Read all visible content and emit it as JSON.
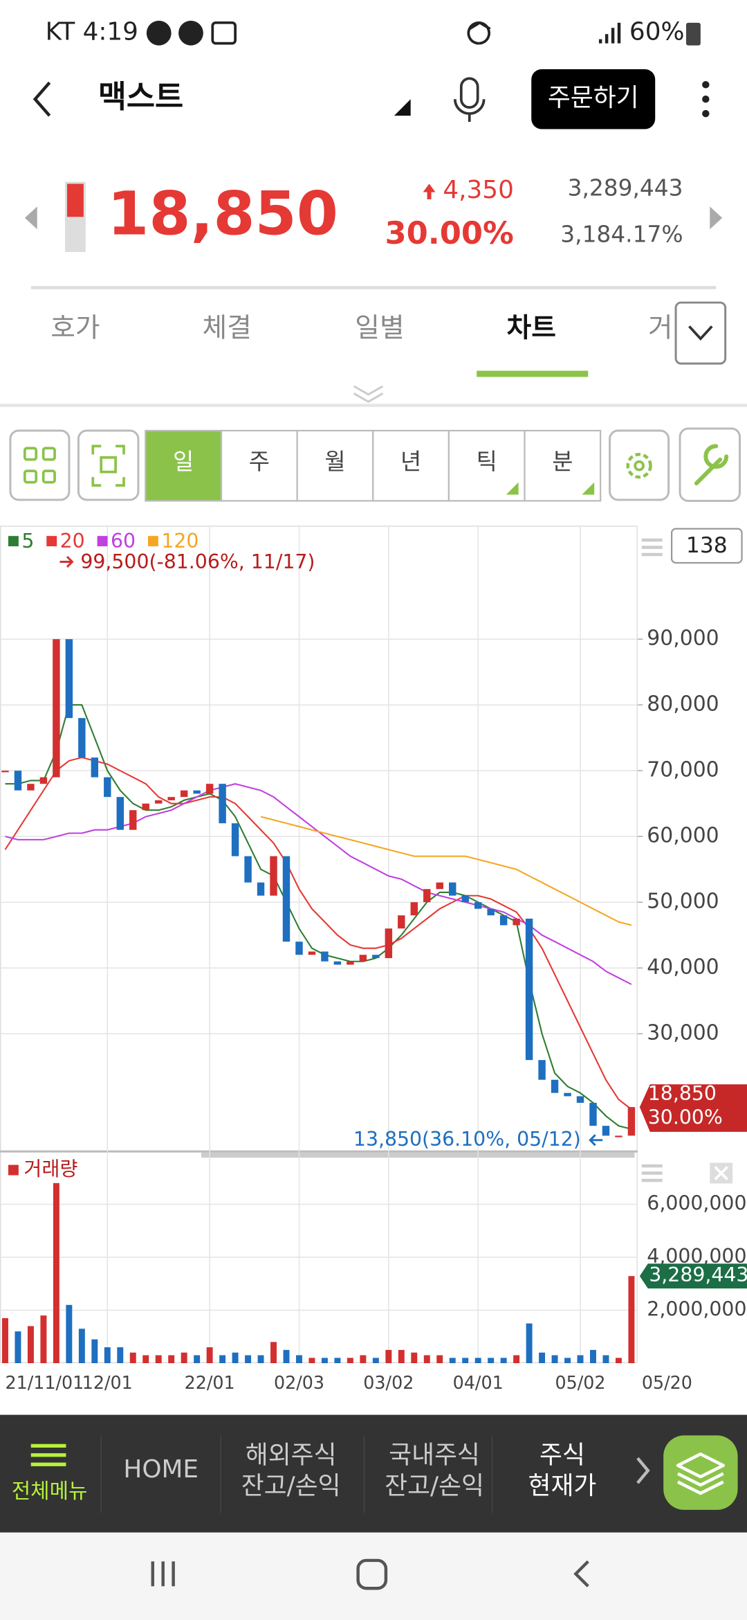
{
  "status_bar": {
    "left": "KT 4:19",
    "battery": "60%"
  },
  "header": {
    "title": "맥스트",
    "order_button": "주문하기"
  },
  "quote": {
    "price": "18,850",
    "change": "4,350",
    "change_rate": "30.00%",
    "volume": "3,289,443",
    "volume_rate": "3,184.17%"
  },
  "tabs": {
    "items": [
      "호가",
      "체결",
      "일별",
      "차트",
      "거"
    ],
    "active": 3
  },
  "toolbar": {
    "periods": [
      "일",
      "주",
      "월",
      "년",
      "틱",
      "분"
    ],
    "active": 0
  },
  "chart_data": {
    "type": "candlestick",
    "categories": [
      "21/11/01",
      null,
      null,
      null,
      null,
      null,
      null,
      null,
      "12/01",
      null,
      null,
      null,
      null,
      null,
      null,
      null,
      "22/01",
      null,
      null,
      null,
      null,
      null,
      null,
      "02/03",
      null,
      null,
      null,
      null,
      null,
      null,
      "03/02",
      null,
      null,
      null,
      null,
      null,
      null,
      "04/01",
      null,
      null,
      null,
      null,
      null,
      null,
      null,
      "05/02",
      null,
      null,
      null,
      "05/20"
    ],
    "close": [
      70000,
      67000,
      68000,
      69000,
      90000,
      78000,
      72000,
      69000,
      66000,
      61000,
      64000,
      65000,
      65500,
      66000,
      67000,
      66500,
      68000,
      62000,
      57000,
      53000,
      51000,
      57000,
      44000,
      42000,
      42500,
      41000,
      40500,
      41000,
      42000,
      41500,
      46000,
      48000,
      50000,
      52000,
      53000,
      51000,
      50000,
      49000,
      48000,
      46500,
      47500,
      26000,
      23000,
      21000,
      20500,
      19500,
      16000,
      14500,
      14500,
      18850
    ],
    "up_color": "#d32f2f",
    "down_color": "#1e6fc0",
    "series": [
      {
        "name": "5",
        "color": "#2e7d32",
        "values": [
          68000,
          68000,
          68500,
          68500,
          73000,
          80000,
          80000,
          75000,
          70000,
          67000,
          65000,
          64000,
          64000,
          64500,
          65500,
          66000,
          66500,
          65500,
          63000,
          59000,
          55000,
          54000,
          50000,
          46000,
          43000,
          42000,
          41500,
          41000,
          41000,
          41500,
          43000,
          45000,
          47500,
          50000,
          51500,
          51500,
          51000,
          50000,
          49000,
          48000,
          47000,
          38000,
          30000,
          24000,
          22000,
          21000,
          19500,
          17500,
          16000,
          15500
        ]
      },
      {
        "name": "20",
        "color": "#e53935",
        "values": [
          58000,
          61000,
          64000,
          67000,
          70000,
          71500,
          72000,
          71500,
          71000,
          70000,
          69000,
          68000,
          66000,
          65000,
          65000,
          65500,
          66000,
          66000,
          65000,
          63000,
          61000,
          59000,
          56000,
          52000,
          49000,
          47000,
          45000,
          43500,
          43000,
          43000,
          43500,
          44500,
          46000,
          47500,
          49000,
          50000,
          51000,
          51000,
          50500,
          49500,
          48500,
          46000,
          43000,
          39000,
          35000,
          31000,
          27000,
          23000,
          20000,
          18500
        ]
      },
      {
        "name": "60",
        "color": "#c040e0",
        "values": [
          60000,
          59500,
          59500,
          59500,
          60000,
          60500,
          60500,
          61000,
          61000,
          61500,
          62000,
          63000,
          63500,
          64000,
          65000,
          66000,
          67000,
          67500,
          68000,
          67500,
          67000,
          66000,
          64500,
          63000,
          61500,
          60000,
          58500,
          57000,
          56000,
          55000,
          54000,
          53500,
          52500,
          51500,
          51000,
          50500,
          50000,
          49500,
          49000,
          48500,
          47500,
          46500,
          45000,
          44000,
          43000,
          42000,
          41000,
          39500,
          38500,
          37500
        ]
      },
      {
        "name": "120",
        "color": "#f5a623",
        "values": [
          null,
          null,
          null,
          null,
          null,
          null,
          null,
          null,
          null,
          null,
          null,
          null,
          null,
          null,
          null,
          null,
          null,
          null,
          null,
          null,
          63000,
          62500,
          62000,
          61500,
          61000,
          60500,
          60000,
          59500,
          59000,
          58500,
          58000,
          57500,
          57000,
          57000,
          57000,
          57000,
          57000,
          56500,
          56000,
          55500,
          55000,
          54000,
          53000,
          52000,
          51000,
          50000,
          49000,
          48000,
          47000,
          46500
        ]
      }
    ],
    "ylim": [
      12100,
      107100
    ],
    "yticks": [
      {
        "value": 30000,
        "label": "30,000"
      },
      {
        "value": 40000,
        "label": "40,000"
      },
      {
        "value": 50000,
        "label": "50,000"
      },
      {
        "value": 60000,
        "label": "60,000"
      },
      {
        "value": 70000,
        "label": "70,000"
      },
      {
        "value": 80000,
        "label": "80,000"
      },
      {
        "value": 90000,
        "label": "90,000"
      }
    ],
    "high_label": "99,500(-81.06%, 11/17)",
    "low_label": "13,850(36.10%, 05/12)",
    "count": "138",
    "current_label": "18,850",
    "current_change": "30.00%",
    "grid": true,
    "volume": {
      "title": "거래량",
      "color_up": "#d32f2f",
      "color_down": "#1e6fc0",
      "values": [
        1700000,
        1200000,
        1400000,
        1800000,
        6800000,
        2200000,
        1300000,
        900000,
        600000,
        600000,
        400000,
        300000,
        300000,
        300000,
        400000,
        300000,
        600000,
        300000,
        400000,
        300000,
        300000,
        800000,
        500000,
        300000,
        200000,
        200000,
        200000,
        200000,
        300000,
        200000,
        500000,
        500000,
        400000,
        300000,
        300000,
        200000,
        200000,
        200000,
        200000,
        200000,
        300000,
        1500000,
        400000,
        300000,
        200000,
        300000,
        500000,
        300000,
        200000,
        3289443
      ],
      "ylim": [
        0,
        7800000
      ],
      "yticks": [
        {
          "value": 2000000,
          "label": "2,000,000"
        },
        {
          "value": 4000000,
          "label": "4,000,000"
        },
        {
          "value": 6000000,
          "label": "6,000,000"
        }
      ],
      "current_label": "3,289,443"
    }
  },
  "bottom_nav": {
    "items": [
      {
        "lines": [
          "전체메뉴"
        ]
      },
      {
        "lines": [
          "HOME"
        ]
      },
      {
        "lines": [
          "해외주식",
          "잔고/손익"
        ]
      },
      {
        "lines": [
          "국내주식",
          "잔고/손익"
        ]
      },
      {
        "lines": [
          "주식",
          "현재가"
        ]
      }
    ]
  }
}
